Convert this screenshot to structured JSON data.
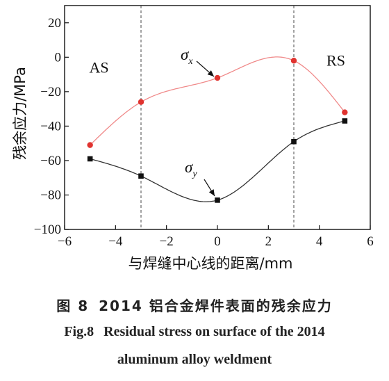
{
  "chart_data": {
    "type": "line",
    "xlabel": "与焊缝中心线的距离/mm",
    "ylabel": "残余应力/MPa",
    "xlim": [
      -6,
      6
    ],
    "ylim": [
      -100,
      30
    ],
    "x_ticks": [
      -6,
      -4,
      -2,
      0,
      2,
      4,
      6
    ],
    "y_ticks": [
      20,
      0,
      -20,
      -40,
      -60,
      -80,
      -100
    ],
    "x_tick_labels": [
      "−6",
      "−4",
      "−2",
      "0",
      "2",
      "4",
      "6"
    ],
    "y_tick_labels": [
      "20",
      "0",
      "−20",
      "−40",
      "−60",
      "−80",
      "−100"
    ],
    "dashed_lines_x": [
      -3,
      3
    ],
    "grid": false,
    "series": [
      {
        "id": "sigma_x",
        "label_main": "σ",
        "label_sub": "x",
        "color": "#f08a8a",
        "marker_color": "#e0332f",
        "marker": "circle",
        "x": [
          -5,
          -3,
          0,
          3,
          5
        ],
        "y": [
          -51,
          -26,
          -12,
          -2,
          -32
        ]
      },
      {
        "id": "sigma_y",
        "label_main": "σ",
        "label_sub": "y",
        "color": "#333333",
        "marker_color": "#111111",
        "marker": "square",
        "x": [
          -5,
          -3,
          0,
          3,
          5
        ],
        "y": [
          -59,
          -69,
          -83,
          -49,
          -37
        ]
      }
    ],
    "annotations": [
      {
        "id": "as",
        "text": "AS",
        "x": -4.65,
        "y": -9
      },
      {
        "id": "rs",
        "text": "RS",
        "x": 4.65,
        "y": -5
      }
    ]
  },
  "caption": {
    "zh_fig": "图 8",
    "zh_text": "2014 铝合金焊件表面的残余应力",
    "en_fig": "Fig.8",
    "en_line1": "Residual stress on surface of the 2014",
    "en_line2": "aluminum alloy weldment"
  }
}
